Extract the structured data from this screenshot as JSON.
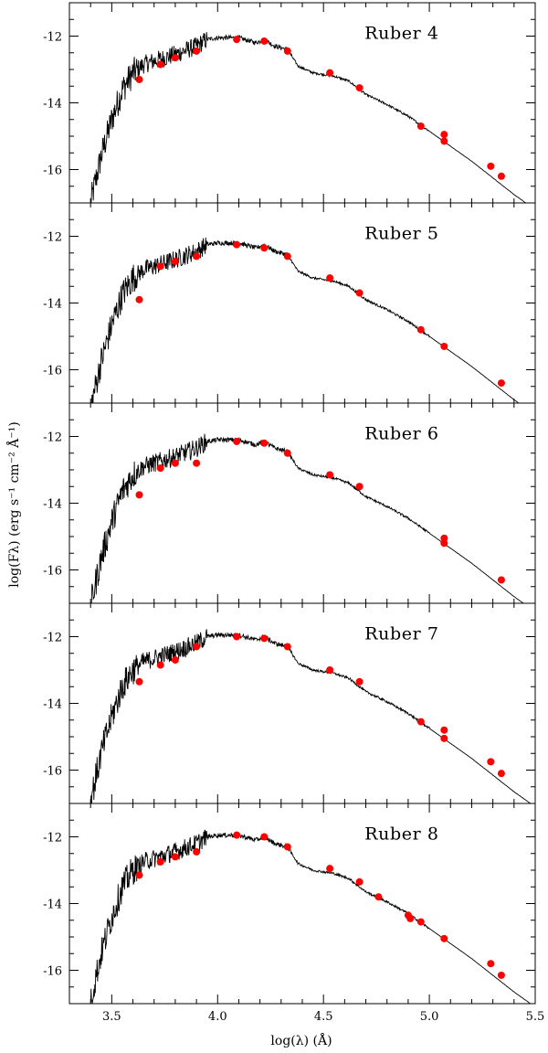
{
  "chart_data": {
    "type": "scatter",
    "shared_x": {
      "label": "log(λ) (Å)",
      "xlim": [
        3.3,
        5.5
      ],
      "ticks": [
        3.5,
        4.0,
        4.5,
        5.0,
        5.5
      ],
      "tick_labels": [
        "3.5",
        "4.0",
        "4.5",
        "5.0",
        "5.5"
      ]
    },
    "shared_y": {
      "label": "log(Fλ)  (erg s⁻¹ cm⁻² Å⁻¹)",
      "ylim": [
        -17,
        -11
      ],
      "ticks": [
        -12,
        -14,
        -16
      ],
      "tick_labels": [
        "-12",
        "-14",
        "-16"
      ]
    },
    "marker_color": "#ff0000",
    "line_color": "#000000",
    "panels": [
      {
        "title": "Ruber 4",
        "model_offset": 0.0,
        "points": [
          [
            3.63,
            -13.3
          ],
          [
            3.73,
            -12.85
          ],
          [
            3.8,
            -12.65
          ],
          [
            3.9,
            -12.45
          ],
          [
            4.09,
            -12.1
          ],
          [
            4.22,
            -12.15
          ],
          [
            4.33,
            -12.45
          ],
          [
            4.53,
            -13.1
          ],
          [
            4.67,
            -13.55
          ],
          [
            4.96,
            -14.7
          ],
          [
            5.07,
            -14.95
          ],
          [
            5.07,
            -15.15
          ],
          [
            5.29,
            -15.9
          ],
          [
            5.34,
            -16.2
          ]
        ]
      },
      {
        "title": "Ruber 5",
        "model_offset": -0.15,
        "points": [
          [
            3.63,
            -13.9
          ],
          [
            3.73,
            -12.9
          ],
          [
            3.8,
            -12.75
          ],
          [
            3.9,
            -12.6
          ],
          [
            4.09,
            -12.25
          ],
          [
            4.22,
            -12.35
          ],
          [
            4.33,
            -12.6
          ],
          [
            4.53,
            -13.25
          ],
          [
            4.67,
            -13.7
          ],
          [
            4.96,
            -14.8
          ],
          [
            5.07,
            -15.3
          ],
          [
            5.34,
            -16.4
          ]
        ]
      },
      {
        "title": "Ruber 6",
        "model_offset": -0.05,
        "points": [
          [
            3.63,
            -13.75
          ],
          [
            3.73,
            -12.95
          ],
          [
            3.8,
            -12.8
          ],
          [
            3.9,
            -12.8
          ],
          [
            4.09,
            -12.15
          ],
          [
            4.22,
            -12.2
          ],
          [
            4.33,
            -12.5
          ],
          [
            4.53,
            -13.15
          ],
          [
            4.67,
            -13.5
          ],
          [
            5.07,
            -15.05
          ],
          [
            5.07,
            -15.2
          ],
          [
            5.34,
            -16.3
          ]
        ]
      },
      {
        "title": "Ruber 7",
        "model_offset": 0.1,
        "points": [
          [
            3.63,
            -13.35
          ],
          [
            3.73,
            -12.85
          ],
          [
            3.8,
            -12.7
          ],
          [
            3.9,
            -12.3
          ],
          [
            4.09,
            -12.0
          ],
          [
            4.22,
            -12.05
          ],
          [
            4.33,
            -12.3
          ],
          [
            4.53,
            -13.0
          ],
          [
            4.67,
            -13.35
          ],
          [
            4.96,
            -14.55
          ],
          [
            5.07,
            -14.8
          ],
          [
            5.07,
            -15.05
          ],
          [
            5.29,
            -15.75
          ],
          [
            5.34,
            -16.1
          ]
        ]
      },
      {
        "title": "Ruber 8",
        "model_offset": 0.1,
        "points": [
          [
            3.63,
            -13.15
          ],
          [
            3.73,
            -12.75
          ],
          [
            3.8,
            -12.6
          ],
          [
            3.9,
            -12.45
          ],
          [
            4.09,
            -11.95
          ],
          [
            4.22,
            -12.0
          ],
          [
            4.33,
            -12.3
          ],
          [
            4.53,
            -12.95
          ],
          [
            4.67,
            -13.35
          ],
          [
            4.76,
            -13.8
          ],
          [
            4.9,
            -14.35
          ],
          [
            4.91,
            -14.45
          ],
          [
            4.96,
            -14.55
          ],
          [
            5.07,
            -15.05
          ],
          [
            5.29,
            -15.8
          ],
          [
            5.34,
            -16.15
          ]
        ]
      }
    ]
  }
}
